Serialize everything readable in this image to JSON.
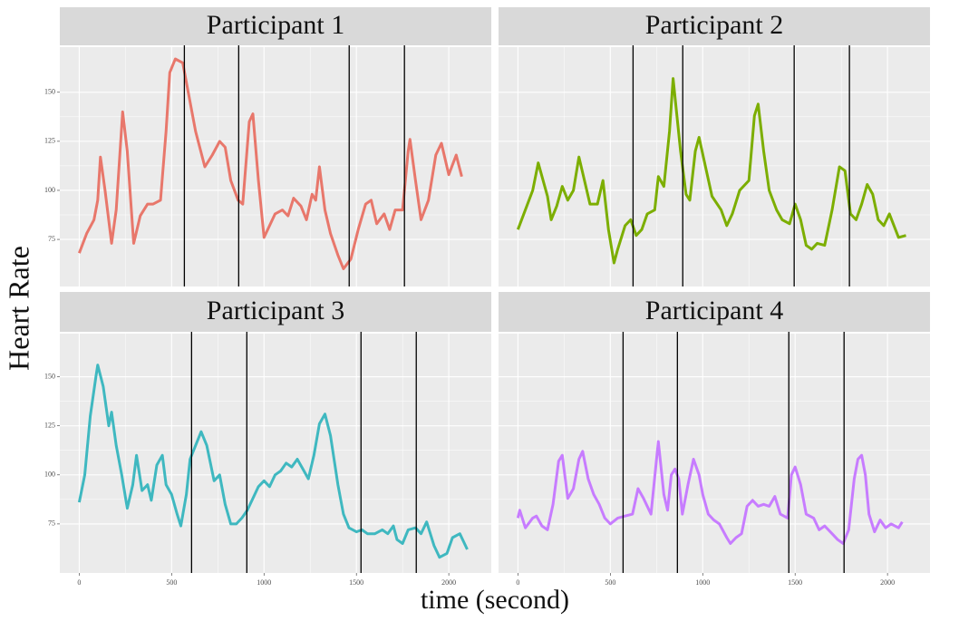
{
  "chart_data": [
    {
      "type": "line",
      "title": "Participant 1",
      "x": [
        0,
        40,
        80,
        100,
        115,
        140,
        175,
        200,
        235,
        260,
        295,
        330,
        370,
        400,
        440,
        470,
        490,
        520,
        560,
        590,
        630,
        680,
        720,
        760,
        790,
        820,
        860,
        885,
        920,
        940,
        970,
        1000,
        1030,
        1060,
        1100,
        1130,
        1160,
        1200,
        1230,
        1260,
        1280,
        1300,
        1330,
        1360,
        1400,
        1430,
        1470,
        1510,
        1550,
        1580,
        1610,
        1650,
        1680,
        1710,
        1750,
        1780,
        1790,
        1820,
        1850,
        1890,
        1930,
        1960,
        2000,
        2040,
        2070
      ],
      "series": [
        {
          "color": "#e8776b",
          "values": [
            68,
            78,
            85,
            95,
            117,
            100,
            73,
            90,
            140,
            120,
            73,
            87,
            93,
            93,
            95,
            130,
            160,
            167,
            165,
            150,
            130,
            112,
            118,
            125,
            122,
            105,
            95,
            93,
            135,
            139,
            105,
            76,
            82,
            88,
            90,
            87,
            96,
            92,
            85,
            98,
            95,
            112,
            90,
            78,
            67,
            60,
            65,
            80,
            93,
            95,
            83,
            88,
            80,
            90,
            90,
            120,
            126,
            105,
            85,
            95,
            118,
            124,
            108,
            118,
            107
          ]
        }
      ],
      "vlines": [
        569,
        863,
        1461,
        1760
      ],
      "xlim": [
        -105,
        2230
      ],
      "ylim": [
        51,
        173
      ],
      "xticks": [
        0,
        500,
        1000,
        1500,
        2000
      ],
      "yticks": [
        75,
        100,
        125,
        150
      ],
      "grid": true
    },
    {
      "type": "line",
      "title": "Participant 2",
      "x": [
        0,
        80,
        110,
        160,
        180,
        210,
        240,
        270,
        300,
        330,
        360,
        390,
        430,
        460,
        490,
        520,
        540,
        580,
        610,
        640,
        670,
        700,
        740,
        760,
        790,
        820,
        840,
        880,
        910,
        930,
        960,
        980,
        1020,
        1050,
        1100,
        1130,
        1160,
        1200,
        1250,
        1280,
        1300,
        1330,
        1360,
        1400,
        1430,
        1470,
        1500,
        1530,
        1560,
        1590,
        1620,
        1660,
        1700,
        1740,
        1770,
        1800,
        1830,
        1860,
        1890,
        1920,
        1950,
        1980,
        2010,
        2060,
        2100
      ],
      "series": [
        {
          "color": "#7cae00",
          "values": [
            80,
            100,
            114,
            97,
            85,
            92,
            102,
            95,
            100,
            117,
            105,
            93,
            93,
            105,
            80,
            63,
            70,
            82,
            85,
            77,
            80,
            88,
            90,
            107,
            102,
            130,
            157,
            120,
            98,
            95,
            120,
            127,
            110,
            97,
            90,
            82,
            88,
            100,
            105,
            138,
            144,
            120,
            100,
            90,
            85,
            83,
            93,
            85,
            72,
            70,
            73,
            72,
            90,
            112,
            110,
            88,
            85,
            93,
            103,
            98,
            85,
            82,
            88,
            76,
            77
          ]
        }
      ],
      "vlines": [
        623,
        892,
        1495,
        1794
      ],
      "xlim": [
        -105,
        2230
      ],
      "ylim": [
        51,
        173
      ],
      "xticks": [
        0,
        500,
        1000,
        1500,
        2000
      ],
      "yticks": [
        75,
        100,
        125,
        150
      ],
      "grid": true
    },
    {
      "type": "line",
      "title": "Participant 3",
      "x": [
        0,
        30,
        60,
        90,
        100,
        130,
        160,
        175,
        200,
        230,
        260,
        290,
        310,
        340,
        370,
        390,
        420,
        450,
        470,
        500,
        530,
        550,
        580,
        600,
        630,
        660,
        690,
        730,
        760,
        790,
        820,
        850,
        880,
        910,
        940,
        970,
        1000,
        1030,
        1060,
        1090,
        1120,
        1150,
        1180,
        1210,
        1240,
        1270,
        1300,
        1330,
        1360,
        1400,
        1430,
        1460,
        1500,
        1530,
        1560,
        1600,
        1640,
        1670,
        1700,
        1720,
        1750,
        1780,
        1820,
        1850,
        1880,
        1920,
        1950,
        1990,
        2020,
        2060,
        2100
      ],
      "series": [
        {
          "color": "#3fb8c0",
          "values": [
            86,
            100,
            130,
            150,
            156,
            145,
            125,
            132,
            115,
            100,
            83,
            95,
            110,
            92,
            95,
            87,
            105,
            110,
            95,
            90,
            80,
            74,
            90,
            108,
            115,
            122,
            115,
            97,
            100,
            85,
            75,
            75,
            78,
            82,
            88,
            94,
            97,
            94,
            100,
            102,
            106,
            104,
            108,
            103,
            98,
            110,
            126,
            131,
            120,
            95,
            80,
            73,
            71,
            72,
            70,
            70,
            72,
            70,
            74,
            67,
            65,
            72,
            73,
            70,
            76,
            64,
            58,
            60,
            68,
            70,
            62
          ]
        }
      ],
      "vlines": [
        608,
        907,
        1525,
        1824
      ],
      "xlim": [
        -105,
        2230
      ],
      "ylim": [
        50,
        172
      ],
      "xticks": [
        0,
        500,
        1000,
        1500,
        2000
      ],
      "yticks": [
        75,
        100,
        125,
        150
      ],
      "grid": true
    },
    {
      "type": "line",
      "title": "Participant 4",
      "x": [
        0,
        10,
        40,
        80,
        100,
        130,
        160,
        190,
        220,
        240,
        270,
        300,
        330,
        350,
        380,
        410,
        440,
        470,
        500,
        540,
        580,
        620,
        650,
        680,
        720,
        750,
        760,
        790,
        810,
        830,
        850,
        870,
        890,
        920,
        950,
        980,
        1000,
        1030,
        1060,
        1090,
        1130,
        1150,
        1180,
        1210,
        1240,
        1270,
        1300,
        1330,
        1360,
        1390,
        1420,
        1460,
        1480,
        1500,
        1530,
        1560,
        1600,
        1630,
        1660,
        1700,
        1730,
        1760,
        1790,
        1820,
        1840,
        1860,
        1880,
        1900,
        1930,
        1960,
        1990,
        2020,
        2060,
        2080
      ],
      "series": [
        {
          "color": "#c77cff",
          "values": [
            78,
            82,
            73,
            78,
            79,
            74,
            72,
            85,
            107,
            110,
            88,
            93,
            108,
            112,
            98,
            90,
            85,
            78,
            75,
            78,
            79,
            80,
            93,
            88,
            80,
            108,
            117,
            90,
            82,
            100,
            103,
            98,
            80,
            95,
            108,
            100,
            90,
            80,
            77,
            75,
            68,
            65,
            68,
            70,
            84,
            87,
            84,
            85,
            84,
            89,
            80,
            78,
            100,
            104,
            95,
            80,
            78,
            72,
            74,
            70,
            67,
            65,
            72,
            98,
            108,
            110,
            100,
            80,
            71,
            77,
            73,
            75,
            73,
            76
          ]
        }
      ],
      "vlines": [
        569,
        863,
        1466,
        1765
      ],
      "xlim": [
        -105,
        2230
      ],
      "ylim": [
        50,
        172
      ],
      "xticks": [
        0,
        500,
        1000,
        1500,
        2000
      ],
      "yticks": [
        75,
        100,
        125,
        150
      ],
      "grid": true
    }
  ],
  "xlabel": "time (second)",
  "ylabel": "Heart Rate"
}
